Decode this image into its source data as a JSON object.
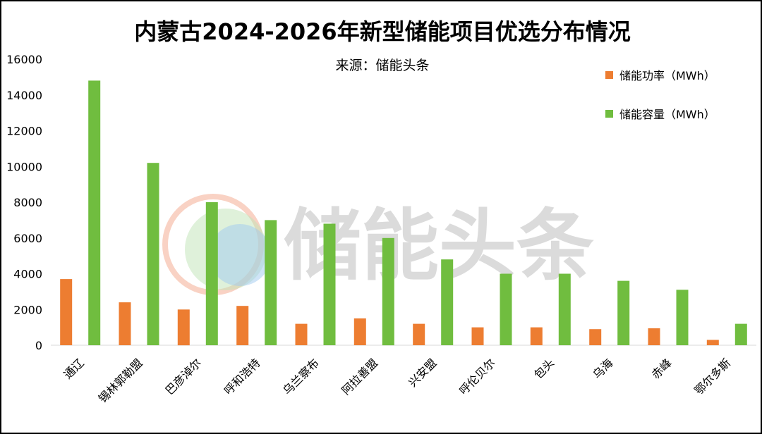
{
  "chart_data": {
    "type": "bar",
    "title": "内蒙古2024-2026年新型储能项目优选分布情况",
    "subtitle": "来源：储能头条",
    "watermark": "储能头条",
    "categories": [
      "通辽",
      "锡林郭勒盟",
      "巴彦淖尔",
      "呼和浩特",
      "乌兰察布",
      "阿拉善盟",
      "兴安盟",
      "呼伦贝尔",
      "包头",
      "乌海",
      "赤峰",
      "鄂尔多斯"
    ],
    "series": [
      {
        "name": "储能功率（MWh）",
        "color": "#ED7D31",
        "values": [
          3700,
          2400,
          2000,
          2200,
          1200,
          1500,
          1200,
          1000,
          1000,
          900,
          950,
          300
        ]
      },
      {
        "name": "储能容量（MWh）",
        "color": "#70BD3F",
        "values": [
          14800,
          10200,
          8000,
          7000,
          6800,
          6000,
          4800,
          4000,
          4000,
          3600,
          3100,
          1200
        ]
      }
    ],
    "ylim": [
      0,
      16000
    ],
    "yticks": [
      0,
      2000,
      4000,
      6000,
      8000,
      10000,
      12000,
      14000,
      16000
    ],
    "grid": false,
    "legend": "top-right"
  }
}
